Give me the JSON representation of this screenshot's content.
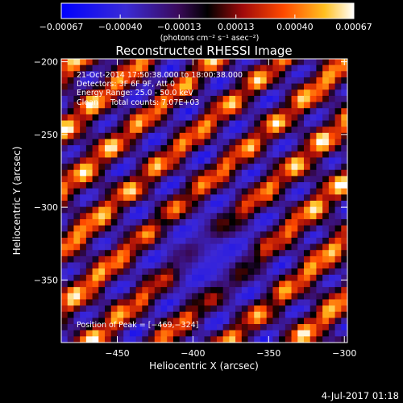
{
  "chart_data": {
    "type": "heatmap",
    "title": "Reconstructed RHESSI Image",
    "xlabel": "Heliocentric X (arcsec)",
    "ylabel": "Heliocentric Y (arcsec)",
    "xlim": [
      -487,
      -298
    ],
    "ylim": [
      -393,
      -198
    ],
    "x_ticks": [
      {
        "value": -450,
        "label": "−450"
      },
      {
        "value": -400,
        "label": "−400"
      },
      {
        "value": -350,
        "label": "−350"
      },
      {
        "value": -300,
        "label": "−300"
      }
    ],
    "y_ticks": [
      {
        "value": -200,
        "label": "−200"
      },
      {
        "value": -250,
        "label": "−250"
      },
      {
        "value": -300,
        "label": "−300"
      },
      {
        "value": -350,
        "label": "−350"
      }
    ],
    "colorbar": {
      "min": -0.00067,
      "max": 0.00067,
      "ticks": [
        {
          "value": -0.00067,
          "label": "−0.00067"
        },
        {
          "value": -0.0004,
          "label": "−0.00040"
        },
        {
          "value": -0.00013,
          "label": "−0.00013"
        },
        {
          "value": 0.00013,
          "label": "0.00013"
        },
        {
          "value": 0.0004,
          "label": "0.00040"
        },
        {
          "value": 0.00067,
          "label": "0.00067"
        }
      ],
      "units_label": "(photons cm⁻² s⁻¹ asec⁻²)"
    },
    "annotations": [
      "21-Oct-2014 17:50:38.000 to 18:00:38.000",
      "Detectors: 3F 6F 9F, Att 0",
      "Energy Range: 25.0 - 50.0 keV",
      "Clean     Total counts: 7.07E+03"
    ],
    "peak_label": "Position of Peak = [−469,−324]",
    "peak_position": [
      -469,
      -324
    ],
    "colors": {
      "background": "#000000",
      "colormap": [
        "#0000ff",
        "#5a2bd0",
        "#3a0a5a",
        "#000000",
        "#b01010",
        "#ff5000",
        "#ffb000",
        "#ffffff"
      ]
    }
  },
  "footer": {
    "date": "4-Jul-2017 01:18"
  }
}
